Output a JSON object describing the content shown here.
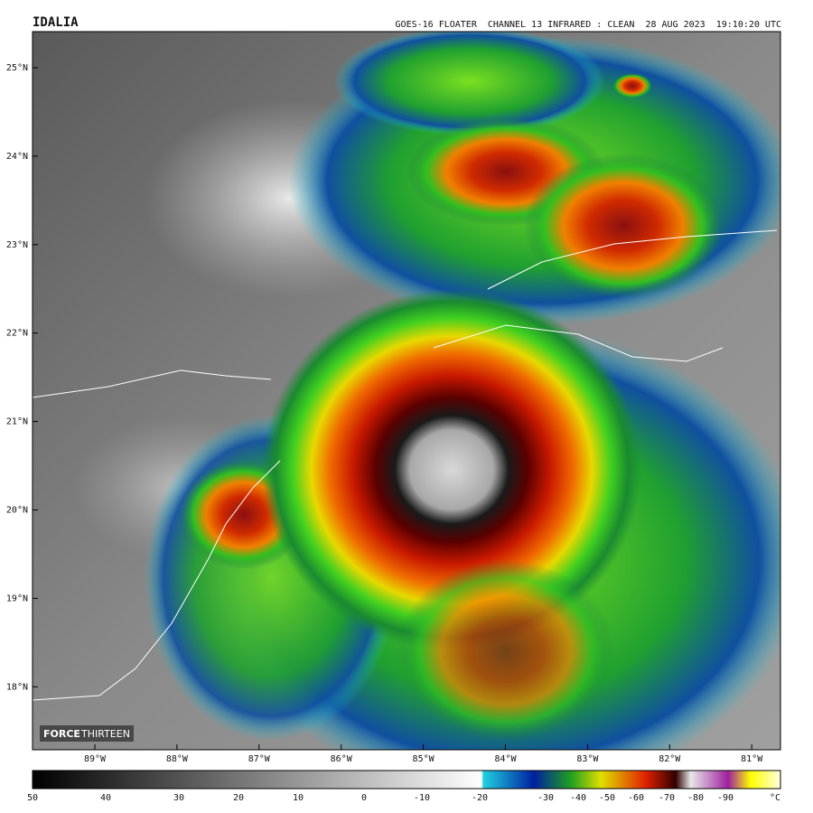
{
  "header": {
    "title": "IDALIA",
    "info": "GOES-16 FLOATER  CHANNEL 13 INFRARED : CLEAN  28 AUG 2023  19:10:20 UTC"
  },
  "latitude_labels": [
    "25°N",
    "24°N",
    "23°N",
    "22°N",
    "21°N",
    "20°N",
    "19°N",
    "18°N"
  ],
  "longitude_labels": [
    "89°W",
    "88°W",
    "87°W",
    "86°W",
    "85°W",
    "84°W",
    "83°W",
    "82°W",
    "81°W"
  ],
  "colorbar": {
    "labels": [
      50,
      40,
      30,
      20,
      10,
      0,
      -10,
      -20,
      -30,
      -40,
      -50,
      -60,
      -70,
      -80,
      -90
    ],
    "unit": "°C"
  },
  "logo": {
    "bold": "FORCE",
    "light": "THIRTEEN"
  }
}
